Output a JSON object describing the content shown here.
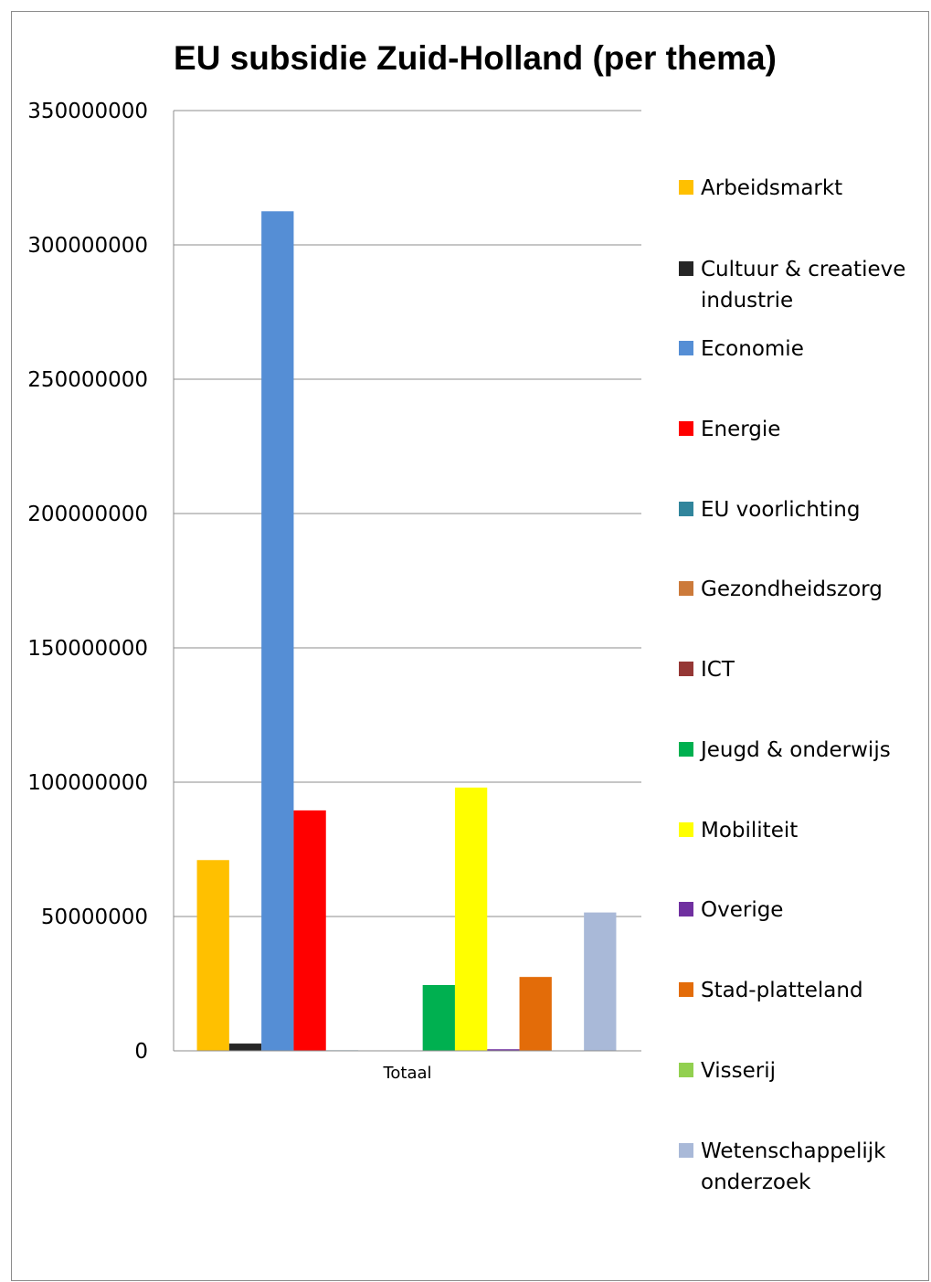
{
  "chart_data": {
    "type": "bar",
    "title": "EU subsidie Zuid-Holland (per thema)",
    "categories": [
      "Totaal"
    ],
    "ylim": [
      0,
      350000000
    ],
    "yticks": [
      0,
      50000000,
      100000000,
      150000000,
      200000000,
      250000000,
      300000000,
      350000000
    ],
    "ytick_labels": [
      "0",
      "50000000",
      "100000000",
      "150000000",
      "200000000",
      "250000000",
      "300000000",
      "350000000"
    ],
    "grid": true,
    "legend_position": "right",
    "series": [
      {
        "name": "Arbeidsmarkt",
        "legend_lines": [
          "Arbeidsmarkt"
        ],
        "values": [
          71000000
        ],
        "color": "#FFC000"
      },
      {
        "name": "Cultuur & creatieve industrie",
        "legend_lines": [
          "Cultuur & creatieve",
          "industrie"
        ],
        "values": [
          2700000
        ],
        "color": "#262626"
      },
      {
        "name": "Economie",
        "legend_lines": [
          "Economie"
        ],
        "values": [
          312500000
        ],
        "color": "#558ED5"
      },
      {
        "name": "Energie",
        "legend_lines": [
          "Energie"
        ],
        "values": [
          89500000
        ],
        "color": "#FF0000"
      },
      {
        "name": "EU voorlichting",
        "legend_lines": [
          "EU voorlichting"
        ],
        "values": [
          200000
        ],
        "color": "#31859C"
      },
      {
        "name": "Gezondheidszorg",
        "legend_lines": [
          "Gezondheidszorg"
        ],
        "values": [
          0
        ],
        "color": "#CC7A3A"
      },
      {
        "name": "ICT",
        "legend_lines": [
          "ICT"
        ],
        "values": [
          0
        ],
        "color": "#953735"
      },
      {
        "name": "Jeugd & onderwijs",
        "legend_lines": [
          "Jeugd & onderwijs"
        ],
        "values": [
          24500000
        ],
        "color": "#00B050"
      },
      {
        "name": "Mobiliteit",
        "legend_lines": [
          "Mobiliteit"
        ],
        "values": [
          98000000
        ],
        "color": "#FFFF00"
      },
      {
        "name": "Overige",
        "legend_lines": [
          "Overige"
        ],
        "values": [
          600000
        ],
        "color": "#7030A0"
      },
      {
        "name": "Stad-platteland",
        "legend_lines": [
          "Stad-platteland"
        ],
        "values": [
          27500000
        ],
        "color": "#E36C09"
      },
      {
        "name": "Visserij",
        "legend_lines": [
          "Visserij"
        ],
        "values": [
          0
        ],
        "color": "#92D050"
      },
      {
        "name": "Wetenschappelijk onderzoek",
        "legend_lines": [
          "Wetenschappelijk",
          "onderzoek"
        ],
        "values": [
          51500000
        ],
        "color": "#A9B9D8"
      }
    ]
  }
}
